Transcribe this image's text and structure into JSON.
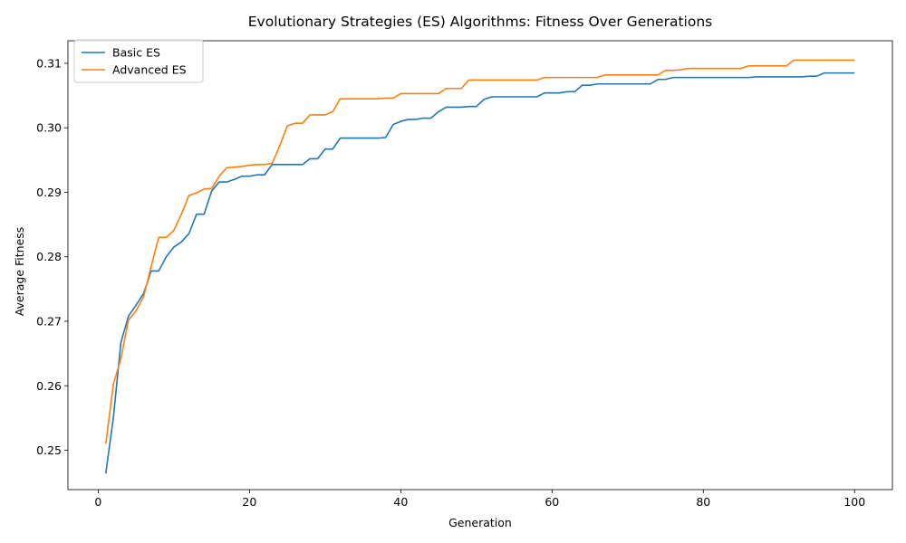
{
  "chart_data": {
    "type": "line",
    "title": "Evolutionary Strategies (ES) Algorithms: Fitness Over Generations",
    "xlabel": "Generation",
    "ylabel": "Average Fitness",
    "xlim": [
      -4,
      105
    ],
    "ylim": [
      0.2439,
      0.3135
    ],
    "xticks": [
      0,
      20,
      40,
      60,
      80,
      100
    ],
    "yticks": [
      0.25,
      0.26,
      0.27,
      0.28,
      0.29,
      0.3,
      0.31
    ],
    "xtick_labels": [
      "0",
      "20",
      "40",
      "60",
      "80",
      "100"
    ],
    "ytick_labels": [
      "0.25",
      "0.26",
      "0.27",
      "0.28",
      "0.29",
      "0.30",
      "0.31"
    ],
    "grid": false,
    "legend_position": "top-left",
    "x_start": 1,
    "series": [
      {
        "name": "Basic ES",
        "color": "#1f77b4",
        "values": [
          0.2464,
          0.255,
          0.2667,
          0.2708,
          0.2725,
          0.2743,
          0.2778,
          0.2778,
          0.28,
          0.2815,
          0.2823,
          0.2836,
          0.2866,
          0.2866,
          0.2902,
          0.2916,
          0.2916,
          0.292,
          0.2925,
          0.2925,
          0.2927,
          0.2927,
          0.2943,
          0.2943,
          0.2943,
          0.2943,
          0.2943,
          0.2952,
          0.2952,
          0.2967,
          0.2967,
          0.2984,
          0.2984,
          0.2984,
          0.2984,
          0.2984,
          0.2984,
          0.2985,
          0.3005,
          0.301,
          0.3013,
          0.3013,
          0.3015,
          0.3015,
          0.3025,
          0.3032,
          0.3032,
          0.3032,
          0.3033,
          0.3033,
          0.3044,
          0.3048,
          0.3048,
          0.3048,
          0.3048,
          0.3048,
          0.3048,
          0.3048,
          0.3054,
          0.3054,
          0.3054,
          0.3056,
          0.3056,
          0.3066,
          0.3066,
          0.3068,
          0.3068,
          0.3068,
          0.3068,
          0.3068,
          0.3068,
          0.3068,
          0.3068,
          0.3075,
          0.3075,
          0.3078,
          0.3078,
          0.3078,
          0.3078,
          0.3078,
          0.3078,
          0.3078,
          0.3078,
          0.3078,
          0.3078,
          0.3078,
          0.3079,
          0.3079,
          0.3079,
          0.3079,
          0.3079,
          0.3079,
          0.3079,
          0.308,
          0.308,
          0.3085,
          0.3085,
          0.3085,
          0.3085,
          0.3085
        ]
      },
      {
        "name": "Advanced ES",
        "color": "#ff7f0e",
        "values": [
          0.251,
          0.2602,
          0.2642,
          0.2702,
          0.2716,
          0.2738,
          0.2785,
          0.283,
          0.283,
          0.2841,
          0.2866,
          0.2895,
          0.2899,
          0.2905,
          0.2906,
          0.2925,
          0.2938,
          0.2939,
          0.294,
          0.2942,
          0.2943,
          0.2943,
          0.2945,
          0.2972,
          0.3003,
          0.3007,
          0.3007,
          0.302,
          0.302,
          0.302,
          0.3025,
          0.3045,
          0.3045,
          0.3045,
          0.3045,
          0.3045,
          0.3045,
          0.3046,
          0.3046,
          0.3053,
          0.3053,
          0.3053,
          0.3053,
          0.3053,
          0.3053,
          0.3061,
          0.3061,
          0.3061,
          0.3074,
          0.3074,
          0.3074,
          0.3074,
          0.3074,
          0.3074,
          0.3074,
          0.3074,
          0.3074,
          0.3074,
          0.3078,
          0.3078,
          0.3078,
          0.3078,
          0.3078,
          0.3078,
          0.3078,
          0.3078,
          0.3082,
          0.3082,
          0.3082,
          0.3082,
          0.3082,
          0.3082,
          0.3082,
          0.3082,
          0.3089,
          0.3089,
          0.309,
          0.3092,
          0.3092,
          0.3092,
          0.3092,
          0.3092,
          0.3092,
          0.3092,
          0.3092,
          0.3096,
          0.3096,
          0.3096,
          0.3096,
          0.3096,
          0.3096,
          0.3105,
          0.3105,
          0.3105,
          0.3105,
          0.3105,
          0.3105,
          0.3105,
          0.3105,
          0.3105
        ]
      }
    ]
  }
}
